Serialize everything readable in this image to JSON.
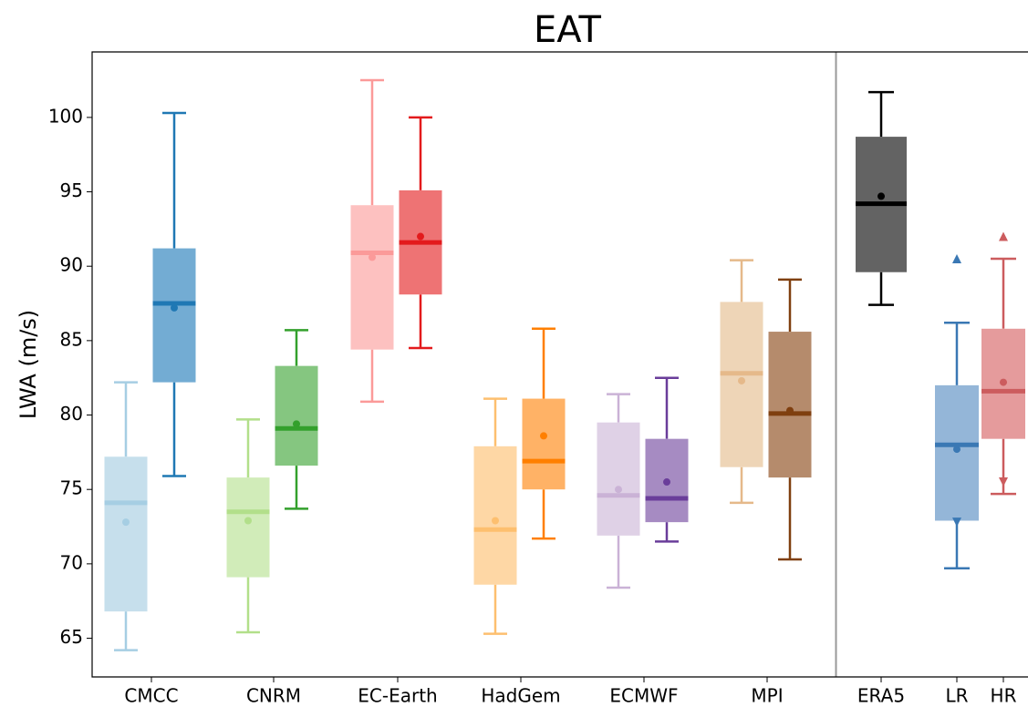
{
  "chart_data": {
    "type": "box",
    "title": "EAT",
    "ylabel": "LWA (m/s)",
    "ylim": [
      62.4,
      104.4
    ],
    "yticks": [
      65,
      70,
      75,
      80,
      85,
      90,
      95,
      100
    ],
    "separator_after": 5,
    "groups": [
      {
        "label": "CMCC",
        "boxes": [
          {
            "color": "#a6cee3",
            "fill": "#c6dfec",
            "low": 64.2,
            "q1": 66.8,
            "median": 74.1,
            "q3": 77.2,
            "high": 82.2,
            "mean": 72.8
          },
          {
            "color": "#1f78b4",
            "fill": "#73acd3",
            "low": 75.9,
            "q1": 82.2,
            "median": 87.5,
            "q3": 91.2,
            "high": 100.3,
            "mean": 87.2
          }
        ]
      },
      {
        "label": "CNRM",
        "boxes": [
          {
            "color": "#b2df8a",
            "fill": "#d1ecb9",
            "low": 65.4,
            "q1": 69.1,
            "median": 73.5,
            "q3": 75.8,
            "high": 79.7,
            "mean": 72.9
          },
          {
            "color": "#33a02c",
            "fill": "#85c680",
            "low": 73.7,
            "q1": 76.6,
            "median": 79.1,
            "q3": 83.3,
            "high": 85.7,
            "mean": 79.4
          }
        ]
      },
      {
        "label": "EC-Earth",
        "boxes": [
          {
            "color": "#fb9a99",
            "fill": "#fdc1c0",
            "low": 80.9,
            "q1": 84.4,
            "median": 90.9,
            "q3": 94.1,
            "high": 102.5,
            "mean": 90.6
          },
          {
            "color": "#e31a1c",
            "fill": "#ee7374",
            "low": 84.5,
            "q1": 88.1,
            "median": 91.6,
            "q3": 95.1,
            "high": 100.0,
            "mean": 92.0
          }
        ]
      },
      {
        "label": "HadGem",
        "boxes": [
          {
            "color": "#fdbf6f",
            "fill": "#fed7a5",
            "low": 65.3,
            "q1": 68.6,
            "median": 72.3,
            "q3": 77.9,
            "high": 81.1,
            "mean": 72.9
          },
          {
            "color": "#ff7f00",
            "fill": "#ffb266",
            "low": 71.7,
            "q1": 75.0,
            "median": 76.9,
            "q3": 81.1,
            "high": 85.8,
            "mean": 78.6
          }
        ]
      },
      {
        "label": "ECMWF",
        "boxes": [
          {
            "color": "#cab2d6",
            "fill": "#dfd1e6",
            "low": 68.4,
            "q1": 71.9,
            "median": 74.6,
            "q3": 79.5,
            "high": 81.4,
            "mean": 75.0
          },
          {
            "color": "#6a3d9a",
            "fill": "#a68bc2",
            "low": 71.5,
            "q1": 72.8,
            "median": 74.4,
            "q3": 78.4,
            "high": 82.5,
            "mean": 75.5
          }
        ]
      },
      {
        "label": "MPI",
        "boxes": [
          {
            "color": "#e5b98a",
            "fill": "#eed5b7",
            "low": 74.1,
            "q1": 76.5,
            "median": 82.8,
            "q3": 87.6,
            "high": 90.4,
            "mean": 82.3
          },
          {
            "color": "#7f3f0f",
            "fill": "#b58b6c",
            "low": 70.3,
            "q1": 75.8,
            "median": 80.1,
            "q3": 85.6,
            "high": 89.1,
            "mean": 80.3
          }
        ]
      },
      {
        "label": "ERA5",
        "boxes": [
          {
            "color": "#000000",
            "fill": "#636363",
            "low": 87.4,
            "q1": 89.6,
            "median": 94.2,
            "q3": 98.7,
            "high": 101.7,
            "mean": 94.7
          }
        ]
      },
      {
        "label": "LR",
        "boxes": [
          {
            "color": "#3a78b4",
            "fill": "#94b6d8",
            "low": 69.7,
            "q1": 72.9,
            "median": 78.0,
            "q3": 82.0,
            "high": 86.2,
            "mean": 77.7,
            "markers": [
              {
                "value": 90.5,
                "marker": "^"
              },
              {
                "value": 72.8,
                "marker": "v"
              }
            ]
          }
        ]
      },
      {
        "label": "HR",
        "boxes": [
          {
            "color": "#cc5c5e",
            "fill": "#e59b9c",
            "low": 74.7,
            "q1": 78.4,
            "median": 81.6,
            "q3": 85.8,
            "high": 90.5,
            "mean": 82.2,
            "markers": [
              {
                "value": 92.0,
                "marker": "^"
              },
              {
                "value": 75.5,
                "marker": "v"
              }
            ]
          }
        ]
      }
    ]
  }
}
